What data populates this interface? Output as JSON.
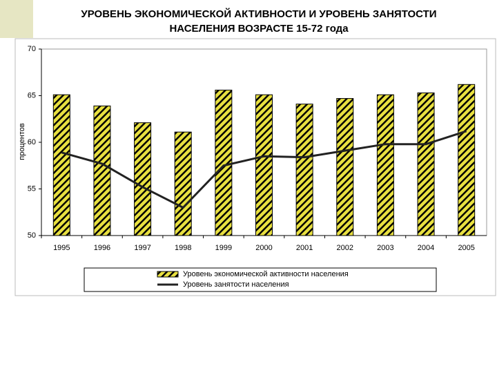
{
  "chart_data": {
    "type": "bar-line",
    "title": [
      "УРОВЕНЬ ЭКОНОМИЧЕСКОЙ АКТИВНОСТИ И УРОВЕНЬ ЗАНЯТОСТИ",
      "НАСЕЛЕНИЯ ВОЗРАСТЕ 15-72 года"
    ],
    "y_label": "процентов",
    "categories": [
      "1995",
      "1996",
      "1997",
      "1998",
      "1999",
      "2000",
      "2001",
      "2002",
      "2003",
      "2004",
      "2005"
    ],
    "series": [
      {
        "name": "Уровень экономической активности населения",
        "type": "bar",
        "color": "#e8e040",
        "values": [
          65.1,
          63.9,
          62.1,
          61.1,
          65.6,
          65.1,
          64.1,
          64.7,
          65.1,
          65.3,
          66.2
        ]
      },
      {
        "name": "Уровень занятости населения",
        "type": "line",
        "color": "#222222",
        "values": [
          58.9,
          57.7,
          55.2,
          53.0,
          57.5,
          58.5,
          58.4,
          59.1,
          59.8,
          59.8,
          61.2
        ]
      }
    ],
    "ylim": [
      50,
      70
    ],
    "yticks": [
      50,
      55,
      60,
      65,
      70
    ]
  }
}
